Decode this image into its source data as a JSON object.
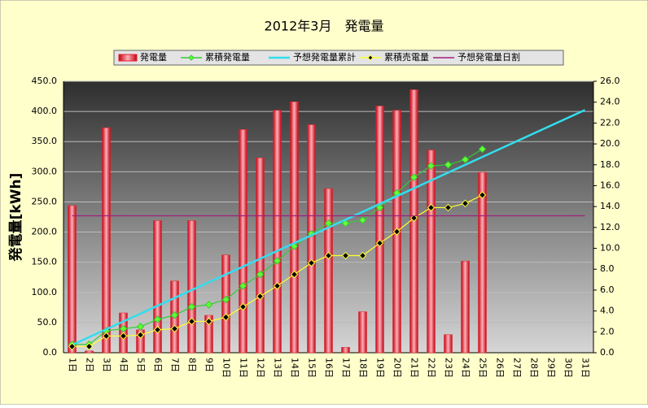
{
  "chart_data": {
    "type": "bar-line",
    "title": "2012年3月　発電量",
    "ylabel": "発電量[kWh]",
    "categories": [
      "1日",
      "2日",
      "3日",
      "4日",
      "5日",
      "6日",
      "7日",
      "8日",
      "9日",
      "10日",
      "11日",
      "12日",
      "13日",
      "14日",
      "15日",
      "16日",
      "17日",
      "18日",
      "19日",
      "20日",
      "21日",
      "22日",
      "23日",
      "24日",
      "25日",
      "26日",
      "27日",
      "28日",
      "29日",
      "30日",
      "31日"
    ],
    "series": [
      {
        "name": "発電量",
        "type": "bar",
        "color": "#e8202a",
        "values": [
          244,
          3,
          373,
          66,
          38,
          219,
          119,
          219,
          62,
          162,
          370,
          323,
          402,
          416,
          378,
          272,
          9,
          68,
          409,
          402,
          436,
          336,
          30,
          152,
          299,
          null,
          null,
          null,
          null,
          null,
          null
        ]
      },
      {
        "name": "累積発電量",
        "type": "line",
        "axis": "y2",
        "color": "#33cc33",
        "marker": "#66ff33",
        "values": [
          0.8,
          0.8,
          2.1,
          2.3,
          2.5,
          3.2,
          3.6,
          4.4,
          4.6,
          5.1,
          6.4,
          7.5,
          8.8,
          10.2,
          11.4,
          12.4,
          12.4,
          12.7,
          13.9,
          15.3,
          16.8,
          17.9,
          18.0,
          18.5,
          19.5,
          null,
          null,
          null,
          null,
          null,
          null
        ]
      },
      {
        "name": "予想発電量累計",
        "type": "line",
        "axis": "y2",
        "color": "#33ddee",
        "values": [
          0.75,
          1.5,
          2.25,
          3.0,
          3.75,
          4.5,
          5.25,
          6.0,
          6.75,
          7.5,
          8.25,
          9.0,
          9.75,
          10.5,
          11.25,
          12.0,
          12.75,
          13.5,
          14.25,
          15.0,
          15.75,
          16.5,
          17.25,
          18.0,
          18.75,
          19.5,
          20.25,
          21.0,
          21.75,
          22.5,
          23.25
        ]
      },
      {
        "name": "累積売電量",
        "type": "line",
        "axis": "y2",
        "color": "#ffff33",
        "marker": "#000000",
        "values": [
          0.6,
          0.6,
          1.6,
          1.6,
          1.7,
          2.2,
          2.3,
          3.0,
          3.0,
          3.4,
          4.4,
          5.4,
          6.4,
          7.5,
          8.6,
          9.3,
          9.3,
          9.3,
          10.5,
          11.6,
          12.9,
          13.9,
          13.9,
          14.3,
          15.1,
          null,
          null,
          null,
          null,
          null,
          null
        ]
      },
      {
        "name": "予想発電量日割",
        "type": "line",
        "color": "#a0207a",
        "values": [
          227,
          227,
          227,
          227,
          227,
          227,
          227,
          227,
          227,
          227,
          227,
          227,
          227,
          227,
          227,
          227,
          227,
          227,
          227,
          227,
          227,
          227,
          227,
          227,
          227,
          227,
          227,
          227,
          227,
          227,
          227
        ]
      }
    ],
    "ylim": [
      0,
      450
    ],
    "yticks": [
      {
        "value": 0,
        "label": "0.0"
      },
      {
        "value": 50,
        "label": "50.0"
      },
      {
        "value": 100,
        "label": "100.0"
      },
      {
        "value": 150,
        "label": "150.0"
      },
      {
        "value": 200,
        "label": "200.0"
      },
      {
        "value": 250,
        "label": "250.0"
      },
      {
        "value": 300,
        "label": "300.0"
      },
      {
        "value": 350,
        "label": "350.0"
      },
      {
        "value": 400,
        "label": "400.0"
      },
      {
        "value": 450,
        "label": "450.0"
      }
    ],
    "y2lim": [
      0,
      26
    ],
    "y2ticks": [
      {
        "value": 0,
        "label": "0.0"
      },
      {
        "value": 2,
        "label": "2.0"
      },
      {
        "value": 4,
        "label": "4.0"
      },
      {
        "value": 6,
        "label": "6.0"
      },
      {
        "value": 8,
        "label": "8.0"
      },
      {
        "value": 10,
        "label": "10.0"
      },
      {
        "value": 12,
        "label": "12.0"
      },
      {
        "value": 14,
        "label": "14.0"
      },
      {
        "value": 16,
        "label": "16.0"
      },
      {
        "value": 18,
        "label": "18.0"
      },
      {
        "value": 20,
        "label": "20.0"
      },
      {
        "value": 22,
        "label": "22.0"
      },
      {
        "value": 24,
        "label": "24.0"
      },
      {
        "value": 26,
        "label": "26.0"
      }
    ],
    "grid": true
  }
}
